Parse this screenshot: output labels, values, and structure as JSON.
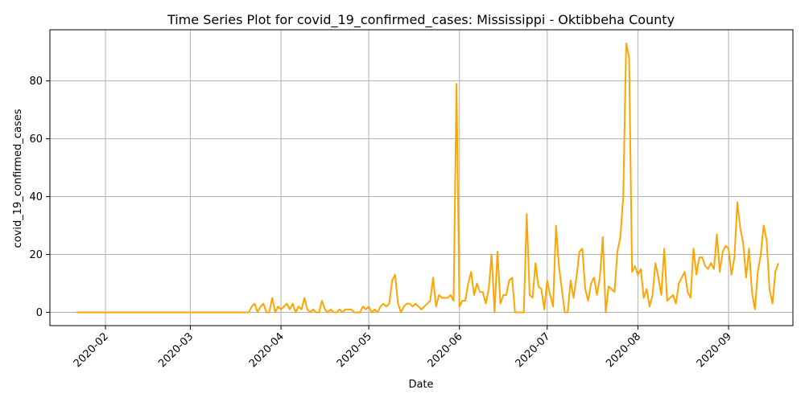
{
  "chart_data": {
    "type": "line",
    "title": "Time Series Plot for covid_19_confirmed_cases: Mississippi - Oktibbeha County",
    "xlabel": "Date",
    "ylabel": "covid_19_confirmed_cases",
    "x_range": [
      "2020-01-13",
      "2020-09-23"
    ],
    "ylim": [
      -4.6,
      97.7
    ],
    "grid": true,
    "x_ticks": [
      "2020-02",
      "2020-03",
      "2020-04",
      "2020-05",
      "2020-06",
      "2020-07",
      "2020-08",
      "2020-09"
    ],
    "x_tick_dates": [
      "2020-02-01",
      "2020-03-01",
      "2020-04-01",
      "2020-05-01",
      "2020-06-01",
      "2020-07-01",
      "2020-08-01",
      "2020-09-01"
    ],
    "y_ticks": [
      0,
      20,
      40,
      60,
      80
    ],
    "line_color": "#ffa500",
    "series": [
      {
        "start_date": "2020-01-22",
        "values": [
          0,
          0,
          0,
          0,
          0,
          0,
          0,
          0,
          0,
          0,
          0,
          0,
          0,
          0,
          0,
          0,
          0,
          0,
          0,
          0,
          0,
          0,
          0,
          0,
          0,
          0,
          0,
          0,
          0,
          0,
          0,
          0,
          0,
          0,
          0,
          0,
          0,
          0,
          0,
          0,
          0,
          0,
          0,
          0,
          0,
          0,
          0,
          0,
          0,
          0,
          0,
          0,
          0,
          0,
          0,
          0,
          0,
          0,
          0,
          0,
          2,
          3,
          0,
          2,
          3,
          0,
          0,
          5,
          0,
          2,
          1,
          2,
          3,
          1,
          3,
          0,
          2,
          1,
          5,
          1,
          0,
          1,
          0,
          0,
          4,
          1,
          0,
          1,
          0,
          0,
          1,
          0,
          1,
          1,
          1,
          0,
          0,
          0,
          2,
          1,
          2,
          0,
          1,
          0,
          2,
          3,
          2,
          3,
          11,
          13,
          3,
          0,
          2,
          3,
          3,
          2,
          3,
          2,
          1,
          2,
          3,
          4,
          12,
          2,
          6,
          5,
          5,
          5,
          6,
          4,
          79,
          2,
          4,
          4,
          10,
          14,
          6,
          10,
          7,
          7,
          3,
          8,
          20,
          0,
          21,
          3,
          6,
          6,
          11,
          12,
          0,
          0,
          0,
          0,
          34,
          6,
          5,
          17,
          9,
          8,
          1,
          11,
          6,
          2,
          30,
          16,
          8,
          0,
          0,
          11,
          5,
          12,
          21,
          22,
          8,
          4,
          10,
          12,
          6,
          12,
          26,
          0,
          9,
          8,
          7,
          21,
          26,
          40,
          93,
          88,
          14,
          16,
          13,
          15,
          5,
          8,
          2,
          6,
          17,
          12,
          6,
          22,
          4,
          5,
          6,
          3,
          10,
          12,
          14,
          7,
          5,
          22,
          13,
          19,
          19,
          16,
          15,
          17,
          15,
          27,
          14,
          21,
          23,
          22,
          13,
          19,
          38,
          29,
          24,
          12,
          22,
          7,
          1,
          14,
          20,
          30,
          25,
          8,
          3,
          14,
          17
        ]
      }
    ]
  }
}
